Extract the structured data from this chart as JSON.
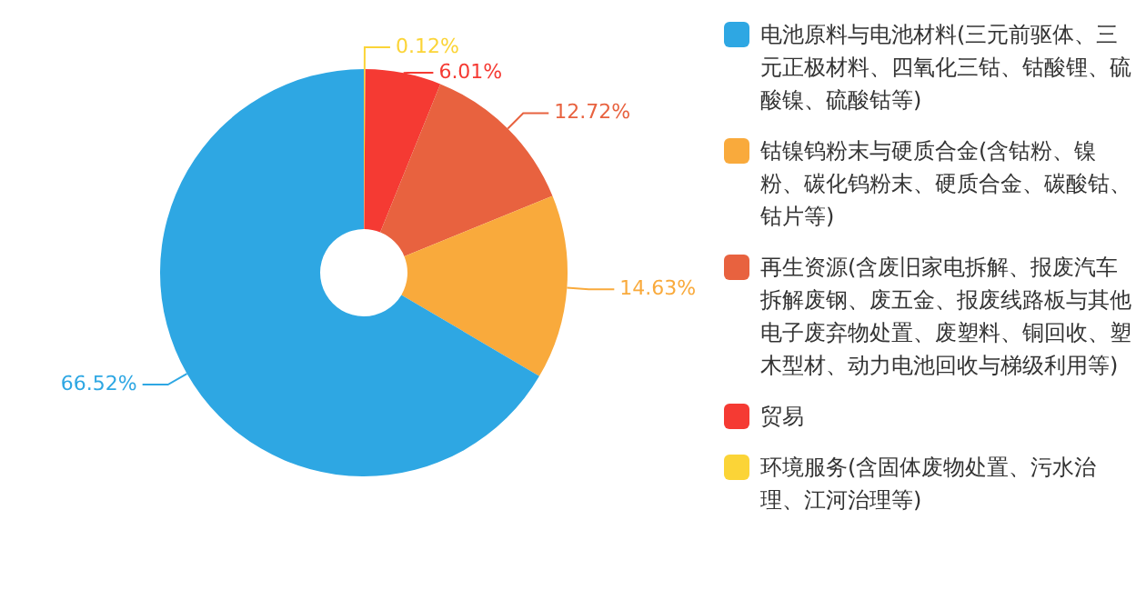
{
  "chart_data": {
    "type": "donut",
    "categories": [
      "电池原料与电池材料(三元前驱体、三元正极材料、四氧化三钴、钴酸锂、硫酸镍、硫酸钴等)",
      "钴镍钨粉末与硬质合金(含钴粉、镍粉、碳化钨粉末、硬质合金、碳酸钴、钴片等)",
      "再生资源(含废旧家电拆解、报废汽车拆解废钢、废五金、报废线路板与其他电子废弃物处置、废塑料、铜回收、塑木型材、动力电池回收与梯级利用等)",
      "贸易",
      "环境服务(含固体废物处置、污水治理、江河治理等)"
    ],
    "values": [
      66.52,
      14.63,
      12.72,
      6.01,
      0.12
    ],
    "value_labels": [
      "66.52%",
      "14.63%",
      "12.72%",
      "6.01%",
      "0.12%"
    ],
    "colors": [
      "#2ea7e3",
      "#f9aa3c",
      "#e8623f",
      "#f53a33",
      "#fbd437"
    ],
    "legend": "right"
  }
}
